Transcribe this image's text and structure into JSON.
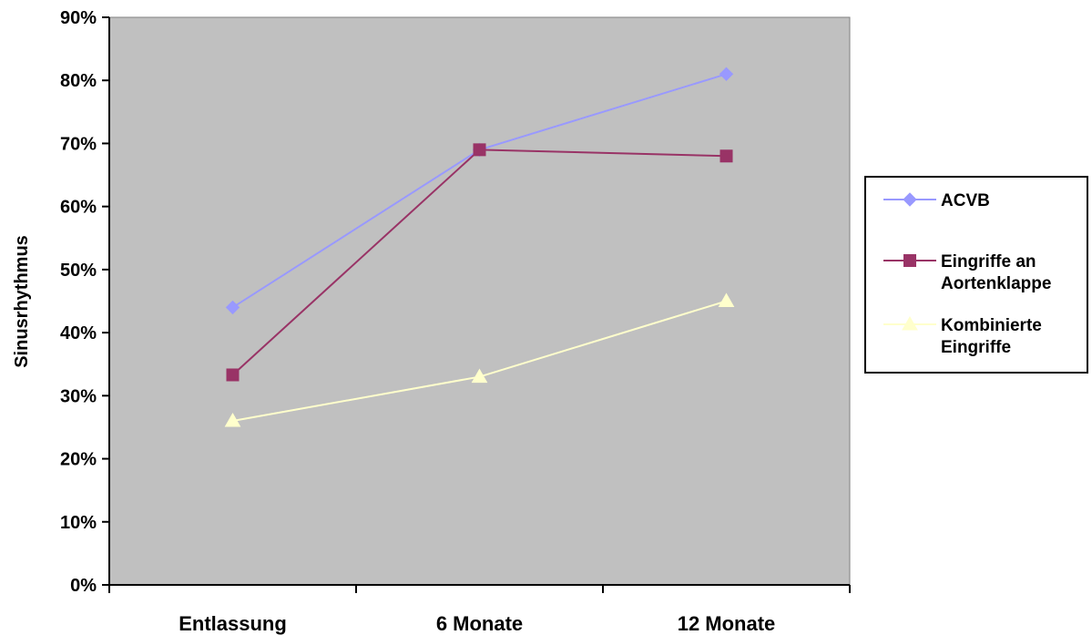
{
  "chart_data": {
    "type": "line",
    "categories": [
      "Entlassung",
      "6 Monate",
      "12 Monate"
    ],
    "ylabel": "Sinusrhythmus",
    "ylim": [
      0,
      0.9
    ],
    "yticks": [
      "0%",
      "10%",
      "20%",
      "30%",
      "40%",
      "50%",
      "60%",
      "70%",
      "80%",
      "90%"
    ],
    "grid": false,
    "plot_background": "#c0c0c0",
    "legend_position": "right",
    "series": [
      {
        "name": "ACVB",
        "values": [
          0.44,
          0.69,
          0.81
        ],
        "color": "#9999ff",
        "marker": "diamond"
      },
      {
        "name": "Eingriffe an Aortenklappe",
        "legend_lines": [
          "Eingriffe an",
          "Aortenklappe"
        ],
        "values": [
          0.333,
          0.69,
          0.68
        ],
        "color": "#993366",
        "marker": "square"
      },
      {
        "name": "Kombinierte Eingriffe",
        "legend_lines": [
          "Kombinierte",
          "Eingriffe"
        ],
        "values": [
          0.26,
          0.33,
          0.45
        ],
        "color": "#ffffcc",
        "marker": "triangle"
      }
    ]
  }
}
